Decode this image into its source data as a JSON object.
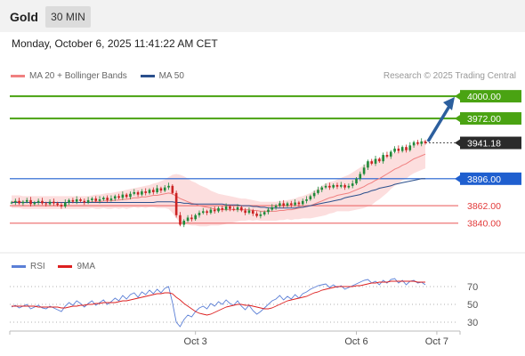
{
  "header": {
    "symbol": "Gold",
    "timeframe": "30 MIN"
  },
  "datetime": "Monday, October 6, 2025 11:41:22 AM CET",
  "credit": "Research © 2025 Trading Central",
  "legend": [
    {
      "label": "MA 20 + Bollinger Bands",
      "color": "#f08080"
    },
    {
      "label": "MA 50",
      "color": "#2a4f8c"
    }
  ],
  "rsi_legend": [
    {
      "label": "RSI",
      "color": "#5b7fd6"
    },
    {
      "label": "9MA",
      "color": "#dd1f1f"
    }
  ],
  "colors": {
    "up": "#1f8a3a",
    "down": "#cc2222",
    "target": "#4aa312",
    "current": "#2b2b2b",
    "pivot": "#1f5fcf",
    "support": "#ee7777",
    "arrow": "#2c5f9e"
  },
  "chart_data": [
    {
      "type": "candlestick",
      "ylim": [
        3815,
        4008
      ],
      "levels": [
        {
          "value": 4000.0,
          "label": "4000.00",
          "kind": "target"
        },
        {
          "value": 3972.0,
          "label": "3972.00",
          "kind": "target"
        },
        {
          "value": 3941.18,
          "label": "3941.18",
          "kind": "current"
        },
        {
          "value": 3896.0,
          "label": "3896.00",
          "kind": "pivot"
        },
        {
          "value": 3862.0,
          "label": "3862.00",
          "kind": "support"
        },
        {
          "value": 3840.0,
          "label": "3840.00",
          "kind": "support"
        }
      ],
      "x_ticks": [
        {
          "label": "Oct 3",
          "index": 48
        },
        {
          "label": "Oct 6",
          "index": 90
        },
        {
          "label": "Oct 7",
          "index": 111
        }
      ],
      "close": [
        3866,
        3868,
        3865,
        3867,
        3869,
        3864,
        3866,
        3868,
        3865,
        3864,
        3867,
        3865,
        3863,
        3861,
        3866,
        3869,
        3867,
        3870,
        3868,
        3866,
        3869,
        3871,
        3868,
        3870,
        3872,
        3869,
        3871,
        3874,
        3872,
        3876,
        3873,
        3877,
        3879,
        3876,
        3880,
        3878,
        3882,
        3879,
        3884,
        3881,
        3885,
        3887,
        3878,
        3850,
        3838,
        3843,
        3847,
        3845,
        3850,
        3853,
        3855,
        3853,
        3857,
        3855,
        3859,
        3857,
        3861,
        3858,
        3857,
        3860,
        3856,
        3853,
        3856,
        3852,
        3849,
        3851,
        3854,
        3857,
        3860,
        3862,
        3865,
        3862,
        3865,
        3863,
        3866,
        3864,
        3868,
        3870,
        3874,
        3878,
        3882,
        3885,
        3887,
        3885,
        3888,
        3886,
        3888,
        3885,
        3887,
        3890,
        3896,
        3902,
        3910,
        3918,
        3915,
        3921,
        3918,
        3926,
        3924,
        3930,
        3934,
        3931,
        3936,
        3932,
        3938,
        3942,
        3940,
        3943,
        3941
      ],
      "ma20": [
        3867,
        3867,
        3867,
        3866,
        3866,
        3866,
        3866,
        3866,
        3866,
        3866,
        3866,
        3866,
        3866,
        3866,
        3866,
        3866,
        3866,
        3866,
        3866,
        3866,
        3866,
        3867,
        3867,
        3867,
        3868,
        3868,
        3868,
        3869,
        3869,
        3870,
        3870,
        3871,
        3872,
        3872,
        3873,
        3873,
        3874,
        3875,
        3875,
        3876,
        3877,
        3878,
        3877,
        3874,
        3871,
        3869,
        3867,
        3865,
        3864,
        3862,
        3861,
        3860,
        3859,
        3858,
        3857,
        3857,
        3857,
        3857,
        3857,
        3857,
        3857,
        3857,
        3857,
        3856,
        3856,
        3855,
        3855,
        3855,
        3855,
        3855,
        3856,
        3856,
        3857,
        3857,
        3858,
        3859,
        3860,
        3861,
        3862,
        3864,
        3866,
        3868,
        3870,
        3872,
        3873,
        3875,
        3876,
        3877,
        3878,
        3880,
        3882,
        3884,
        3886,
        3889,
        3891,
        3894,
        3896,
        3899,
        3902,
        3905,
        3908,
        3910,
        3913,
        3915,
        3918,
        3921,
        3923,
        3925,
        3927
      ],
      "ma50": [
        3866,
        3866,
        3866,
        3866,
        3866,
        3866,
        3866,
        3866,
        3866,
        3866,
        3866,
        3866,
        3866,
        3866,
        3866,
        3866,
        3866,
        3866,
        3866,
        3866,
        3866,
        3866,
        3866,
        3866,
        3866,
        3866,
        3866,
        3866,
        3866,
        3866,
        3866,
        3866,
        3866,
        3866,
        3866,
        3866,
        3866,
        3866,
        3867,
        3867,
        3867,
        3867,
        3867,
        3866,
        3866,
        3865,
        3865,
        3864,
        3864,
        3864,
        3864,
        3864,
        3864,
        3864,
        3864,
        3864,
        3863,
        3863,
        3863,
        3863,
        3862,
        3862,
        3862,
        3861,
        3861,
        3860,
        3860,
        3859,
        3859,
        3859,
        3859,
        3859,
        3859,
        3859,
        3859,
        3860,
        3860,
        3861,
        3862,
        3863,
        3864,
        3865,
        3866,
        3867,
        3868,
        3869,
        3870,
        3872,
        3873,
        3874,
        3875,
        3876,
        3878,
        3879,
        3881,
        3882,
        3884,
        3885,
        3886,
        3887,
        3889,
        3890,
        3891,
        3892,
        3893,
        3894,
        3895,
        3896,
        3896
      ],
      "bb_width": [
        8,
        8,
        8,
        8,
        8,
        8,
        8,
        8,
        8,
        8,
        8,
        8,
        8,
        8,
        8,
        8,
        8,
        8,
        8,
        8,
        8,
        8,
        9,
        9,
        9,
        10,
        10,
        10,
        11,
        11,
        12,
        12,
        12,
        13,
        13,
        14,
        14,
        15,
        16,
        17,
        18,
        20,
        24,
        28,
        30,
        30,
        29,
        28,
        27,
        26,
        25,
        24,
        22,
        21,
        20,
        19,
        18,
        17,
        16,
        15,
        14,
        14,
        13,
        13,
        12,
        12,
        12,
        12,
        12,
        12,
        12,
        12,
        12,
        13,
        13,
        14,
        14,
        15,
        16,
        17,
        18,
        19,
        20,
        20,
        20,
        20,
        21,
        22,
        23,
        24,
        25,
        26,
        27,
        28,
        28,
        27,
        26,
        25,
        24,
        22,
        21,
        20,
        19,
        19,
        18,
        18,
        18,
        18,
        18
      ]
    },
    {
      "type": "line",
      "title": "RSI",
      "ylim": [
        20,
        85
      ],
      "y_ticks": [
        70,
        50,
        30
      ],
      "series": [
        {
          "name": "RSI",
          "values": [
            47,
            49,
            46,
            48,
            50,
            45,
            47,
            49,
            46,
            45,
            48,
            46,
            44,
            42,
            48,
            52,
            49,
            54,
            51,
            47,
            51,
            54,
            49,
            52,
            55,
            50,
            53,
            57,
            54,
            60,
            56,
            61,
            63,
            58,
            64,
            61,
            66,
            62,
            67,
            63,
            68,
            70,
            52,
            30,
            25,
            33,
            38,
            36,
            42,
            46,
            48,
            45,
            51,
            48,
            53,
            50,
            55,
            51,
            49,
            54,
            48,
            44,
            49,
            43,
            39,
            42,
            46,
            50,
            54,
            56,
            60,
            55,
            59,
            56,
            61,
            57,
            62,
            64,
            67,
            69,
            71,
            72,
            73,
            69,
            72,
            69,
            71,
            67,
            69,
            71,
            73,
            75,
            77,
            78,
            74,
            76,
            72,
            77,
            74,
            78,
            79,
            74,
            77,
            72,
            76,
            77,
            74,
            75,
            72
          ]
        },
        {
          "name": "9MA",
          "values": [
            48,
            48,
            48,
            48,
            48,
            48,
            48,
            47,
            47,
            47,
            47,
            47,
            47,
            46,
            46,
            47,
            48,
            48,
            49,
            49,
            50,
            50,
            51,
            51,
            52,
            52,
            52,
            52,
            53,
            54,
            54,
            55,
            56,
            57,
            58,
            59,
            60,
            61,
            62,
            62,
            63,
            63,
            62,
            58,
            55,
            51,
            48,
            45,
            42,
            40,
            39,
            38,
            39,
            41,
            43,
            45,
            47,
            48,
            49,
            50,
            50,
            49,
            49,
            48,
            47,
            46,
            45,
            45,
            46,
            48,
            50,
            52,
            54,
            55,
            56,
            57,
            58,
            59,
            61,
            63,
            64,
            66,
            67,
            68,
            69,
            70,
            70,
            70,
            70,
            70,
            71,
            71,
            72,
            73,
            74,
            74,
            75,
            75,
            75,
            76,
            76,
            76,
            76,
            76,
            76,
            76,
            75,
            75,
            75
          ]
        }
      ]
    }
  ]
}
